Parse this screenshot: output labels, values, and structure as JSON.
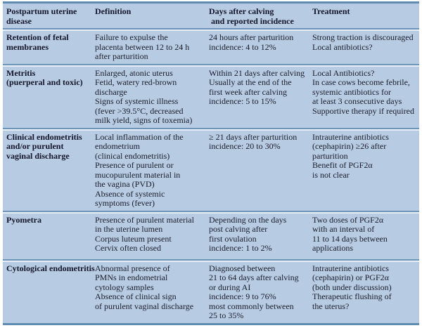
{
  "meta": {
    "colors": {
      "table_background": "#b7cce2",
      "separator_dark_blue": "#6d95ba",
      "separator_light": "#e8eef5",
      "outer_border_blue": "#5f8ab1",
      "text": "#1b1b2b"
    }
  },
  "table": {
    "headers": [
      "Postpartum uterine\ndisease",
      "Definition",
      "Days after calving\n and reported incidence",
      "Treatment"
    ],
    "rows": [
      {
        "disease": "Retention of fetal\nmembranes",
        "definition": "Failure to expulse the\nplacenta between 12 to 24 h\nafter parturition",
        "days": "24 hours after parturition\nincidence: 4 to 12%",
        "treatment": "Strong traction is discouraged\nLocal antibiotics?"
      },
      {
        "disease": "Metritis\n(puerperal and toxic)",
        "definition": "Enlarged, atonic uterus\nFetid, watery red-brown\ndischarge\nSigns of systemic illness\n(fever >39.5°C, decreased\nmilk yield, signs of toxemia)",
        "days": "Within 21 days after calving\nUsually at the end of the\nfirst week after calving\nincidence: 5 to 15%",
        "treatment": "Local Antibiotics?\nIn case cows become febrile,\nsystemic antibiotics for\nat least 3 consecutive days\nSupportive therapy if required"
      },
      {
        "disease": "Clinical endometritis\nand/or purulent\nvaginal discharge",
        "definition": "Local inflammation of the\nendometrium\n(clinical endometritis)\nPresence of purulent or\nmucopurulent material in\nthe vagina (PVD)\nAbsence of systemic\nsymptoms (fever)",
        "days": "≥ 21 days after parturition\nincidence: 20 to 30%",
        "treatment": "Intrauterine antibiotics\n(cephapirin) ≥26 after\nparturition\nBenefit of PGF2α\nis not clear"
      },
      {
        "disease": "Pyometra",
        "definition": "Presence of purulent material\nin the uterine lumen\nCorpus luteum present\nCervix often closed",
        "days": "Depending on the days\npost calving after\nfirst ovulation\nincidence: 1 to 2%",
        "treatment": "Two doses of PGF2α\nwith an interval of\n11 to 14 days between\napplications"
      },
      {
        "disease": "Cytological endometritis",
        "definition": "Abnormal presence of\nPMNs in endometrial\ncytology samples\nAbsence of clinical sign\nof purulent vaginal discharge",
        "days": "Diagnosed between\n21 to 64 days after calving\nor during AI\nincidence: 9 to 76%\nmost commonly between\n25 to 35%",
        "treatment": "Intrauterine antibiotics\n(cephapirin) or PGF2α\n(both under discussion)\nTherapeutic flushing of\nthe uterus?"
      }
    ]
  }
}
